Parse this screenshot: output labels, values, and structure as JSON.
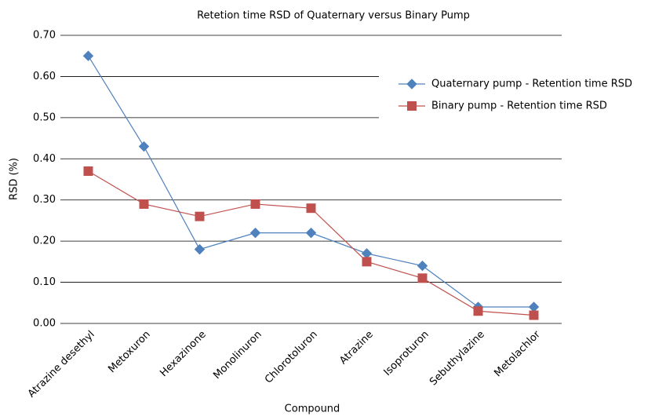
{
  "chart_data": {
    "type": "line",
    "title": "Retetion time RSD of Quaternary versus Binary Pump",
    "x_label": "Compound",
    "y_label": "RSD (%)",
    "categories": [
      "Atrazine desethyl",
      "Metoxuron",
      "Hexazinone",
      "Monolinuron",
      "Chlorotoluron",
      "Atrazine",
      "Isoproturon",
      "Sebuthylazine",
      "Metolachlor"
    ],
    "series": [
      {
        "name": "Quaternary pump - Retention time RSD",
        "color": "#4f81bd",
        "marker": "diamond",
        "values": [
          0.65,
          0.43,
          0.18,
          0.22,
          0.22,
          0.17,
          0.14,
          0.04,
          0.04
        ]
      },
      {
        "name": "Binary pump - Retention time RSD",
        "color": "#c0504d",
        "marker": "square",
        "values": [
          0.37,
          0.29,
          0.26,
          0.29,
          0.28,
          0.15,
          0.11,
          0.03,
          0.02
        ]
      }
    ],
    "ylim": [
      0,
      0.7
    ],
    "yticks": [
      {
        "value": 0,
        "label": "0.00"
      },
      {
        "value": 0.1,
        "label": "0.10"
      },
      {
        "value": 0.2,
        "label": "0.20"
      },
      {
        "value": 0.3,
        "label": "0.30"
      },
      {
        "value": 0.4,
        "label": "0.40"
      },
      {
        "value": 0.5,
        "label": "0.50"
      },
      {
        "value": 0.6,
        "label": "0.60"
      },
      {
        "value": 0.7,
        "label": "0.70"
      }
    ],
    "grid": true,
    "legend": "right"
  }
}
